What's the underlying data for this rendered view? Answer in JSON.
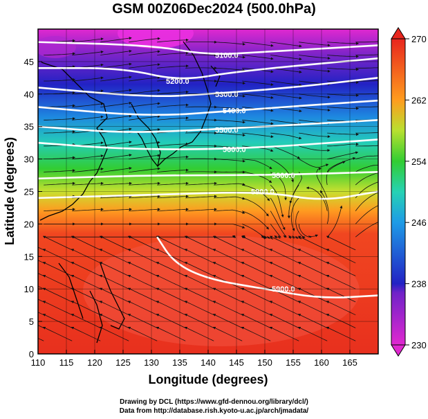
{
  "title": "GSM 00Z06Dec2024 (500.0hPa)",
  "xaxis": {
    "label": "Longitude (degrees)",
    "ticks": [
      110,
      115,
      120,
      125,
      130,
      135,
      140,
      145,
      150,
      155,
      160,
      165
    ],
    "range": [
      110,
      170
    ]
  },
  "yaxis": {
    "label": "Latitude  (degrees)",
    "ticks": [
      0,
      5,
      10,
      15,
      20,
      25,
      30,
      35,
      40,
      45
    ],
    "range": [
      0,
      50
    ]
  },
  "colorbar": {
    "ticks": [
      230,
      238,
      246,
      254,
      262,
      270
    ],
    "range": [
      230,
      270
    ],
    "colors": [
      "#e033d0",
      "#2020c8",
      "#1e9be6",
      "#26d2b4",
      "#32cd32",
      "#c8e632",
      "#ff9c1e",
      "#e8261e"
    ]
  },
  "contours": [
    {
      "label": "5100.0",
      "lat_at_lon": [
        [
          110,
          48
        ],
        [
          130,
          47.5
        ],
        [
          140,
          46
        ],
        [
          150,
          46.5
        ],
        [
          170,
          47.5
        ]
      ]
    },
    {
      "label": "5200.0",
      "lat_at_lon": [
        [
          110,
          44
        ],
        [
          125,
          44
        ],
        [
          135,
          42
        ],
        [
          145,
          43.5
        ],
        [
          170,
          45.5
        ]
      ]
    },
    {
      "label": "5300.0",
      "lat_at_lon": [
        [
          110,
          41
        ],
        [
          130,
          39.5
        ],
        [
          140,
          40
        ],
        [
          155,
          41
        ],
        [
          170,
          42.5
        ]
      ]
    },
    {
      "label": "5400.0",
      "lat_at_lon": [
        [
          110,
          38
        ],
        [
          130,
          36.5
        ],
        [
          145,
          37.5
        ],
        [
          170,
          39
        ]
      ]
    },
    {
      "label": "5500.0",
      "lat_at_lon": [
        [
          110,
          35
        ],
        [
          125,
          34
        ],
        [
          140,
          34.5
        ],
        [
          170,
          36
        ]
      ]
    },
    {
      "label": "5600.0",
      "lat_at_lon": [
        [
          110,
          32.5
        ],
        [
          125,
          31.5
        ],
        [
          145,
          31.5
        ],
        [
          170,
          33
        ]
      ]
    },
    {
      "label": "5800.0",
      "lat_at_lon": [
        [
          110,
          27
        ],
        [
          130,
          27.5
        ],
        [
          150,
          27.5
        ],
        [
          170,
          28
        ]
      ]
    },
    {
      "label": "5900.0",
      "lat_at_lon": [
        [
          110,
          24
        ],
        [
          130,
          24.5
        ],
        [
          150,
          25
        ],
        [
          160,
          23.5
        ],
        [
          170,
          25
        ]
      ]
    },
    {
      "label": "5900.0",
      "lat_at_lon": [
        [
          131,
          18
        ],
        [
          134,
          14
        ],
        [
          140,
          11.5
        ],
        [
          150,
          10
        ],
        [
          160,
          8.5
        ],
        [
          170,
          9
        ]
      ]
    }
  ],
  "credits": {
    "line1": "Drawing by DCL (https://www.gfd-dennou.org/library/dcl/)",
    "line2": "Data from http://database.rish.kyoto-u.ac.jp/arch/jmadata/"
  }
}
